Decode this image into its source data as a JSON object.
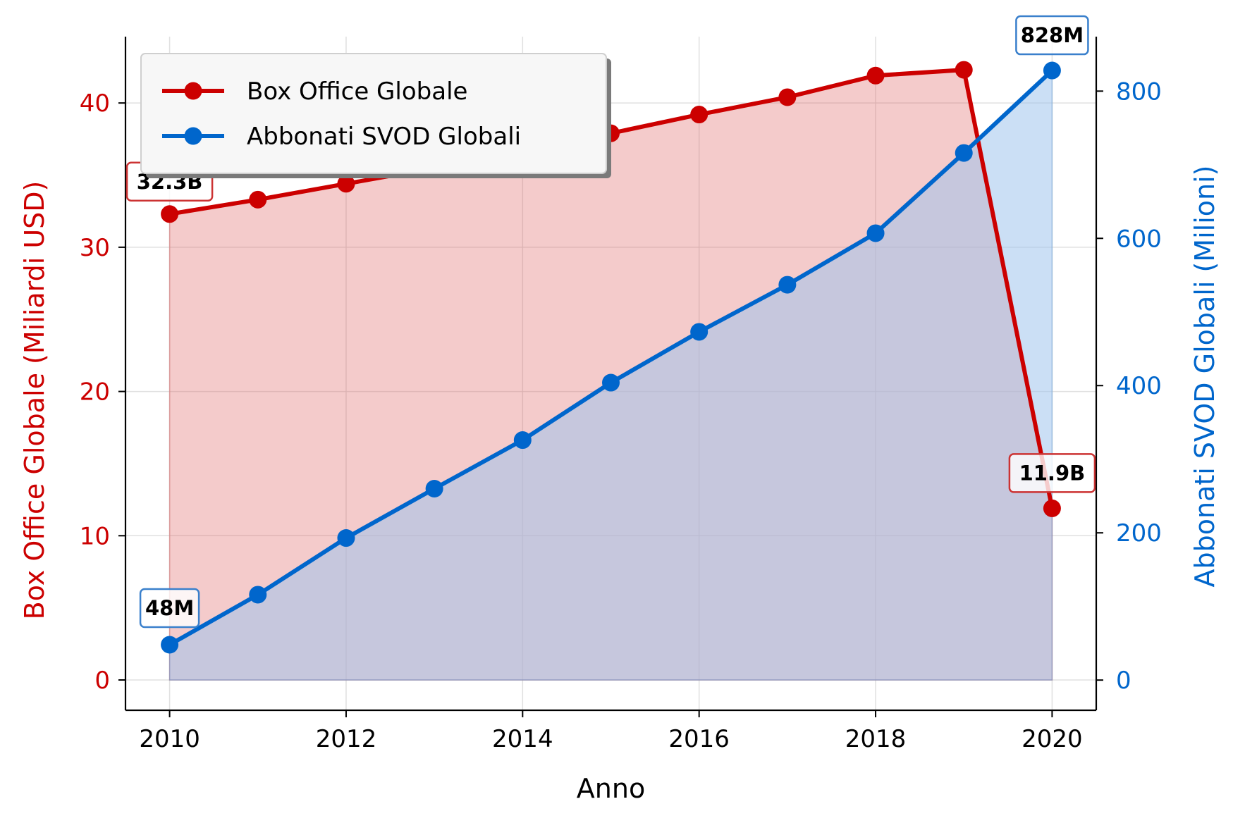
{
  "chart_data": {
    "type": "line",
    "title": "",
    "xlabel": "Anno",
    "ylabel_left": "Box Office Globale (Miliardi USD)",
    "ylabel_right": "Abbonati SVOD Globali (Milioni)",
    "x": [
      2010,
      2011,
      2012,
      2013,
      2014,
      2015,
      2016,
      2017,
      2018,
      2019,
      2020
    ],
    "x_ticks": [
      2010,
      2012,
      2014,
      2016,
      2018,
      2020
    ],
    "xlim": [
      2009.5,
      2020.5
    ],
    "y_left_lim": [
      -2.1,
      44.6
    ],
    "y_left_ticks": [
      0,
      10,
      20,
      30,
      40
    ],
    "y_right_lim": [
      -41,
      874
    ],
    "y_right_ticks": [
      0,
      200,
      400,
      600,
      800
    ],
    "grid": true,
    "legend_position": "top-left",
    "series": [
      {
        "name": "Box Office Globale",
        "axis": "left",
        "color": "#cc0000",
        "fill_color": "#e06666",
        "values": [
          32.3,
          33.3,
          34.4,
          35.5,
          36.4,
          37.9,
          39.2,
          40.4,
          41.9,
          42.3,
          11.9
        ]
      },
      {
        "name": "Abbonati SVOD Globali",
        "axis": "right",
        "color": "#0066cc",
        "fill_color": "#a0c4ec",
        "values": [
          48,
          116,
          193,
          260,
          326,
          404,
          473,
          537,
          607,
          716,
          828
        ]
      }
    ],
    "annotations": [
      {
        "text": "32.3B",
        "series": "Box Office Globale",
        "x": 2010,
        "color": "#cc3333"
      },
      {
        "text": "11.9B",
        "series": "Box Office Globale",
        "x": 2020,
        "color": "#cc3333"
      },
      {
        "text": "48M",
        "series": "Abbonati SVOD Globali",
        "x": 2010,
        "color": "#3a80cc"
      },
      {
        "text": "828M",
        "series": "Abbonati SVOD Globali",
        "x": 2020,
        "color": "#3a80cc"
      }
    ]
  }
}
